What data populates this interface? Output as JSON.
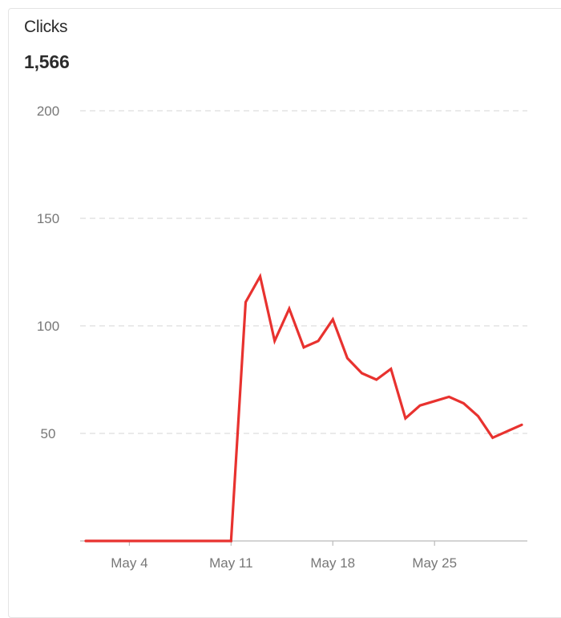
{
  "metric": {
    "title": "Clicks",
    "value": "1,566"
  },
  "colors": {
    "line": "#e8322f",
    "grid": "#dddddd",
    "axis": "#bbbbbb",
    "tick_text": "#777777"
  },
  "chart_data": {
    "type": "line",
    "title": "",
    "xlabel": "",
    "ylabel": "",
    "ylim": [
      0,
      200
    ],
    "y_ticks": [
      50,
      100,
      150,
      200
    ],
    "x_ticks": [
      {
        "label": "May 4",
        "day": 4
      },
      {
        "label": "May 11",
        "day": 11
      },
      {
        "label": "May 18",
        "day": 18
      },
      {
        "label": "May 25",
        "day": 25
      }
    ],
    "x_range": [
      1,
      31
    ],
    "grid": "horizontal dashed",
    "series": [
      {
        "x": [
          "May 1",
          "May 2",
          "May 3",
          "May 4",
          "May 5",
          "May 6",
          "May 7",
          "May 8",
          "May 9",
          "May 10",
          "May 11",
          "May 12",
          "May 13",
          "May 14",
          "May 15",
          "May 16",
          "May 17",
          "May 18",
          "May 19",
          "May 20",
          "May 21",
          "May 22",
          "May 23",
          "May 24",
          "May 25",
          "May 26",
          "May 27",
          "May 28",
          "May 29",
          "May 30",
          "May 31"
        ],
        "values": [
          0,
          0,
          0,
          0,
          0,
          0,
          0,
          0,
          0,
          0,
          0,
          111,
          123,
          93,
          108,
          90,
          93,
          103,
          85,
          78,
          75,
          80,
          57,
          63,
          65,
          67,
          64,
          58,
          48,
          51,
          54
        ]
      }
    ]
  }
}
